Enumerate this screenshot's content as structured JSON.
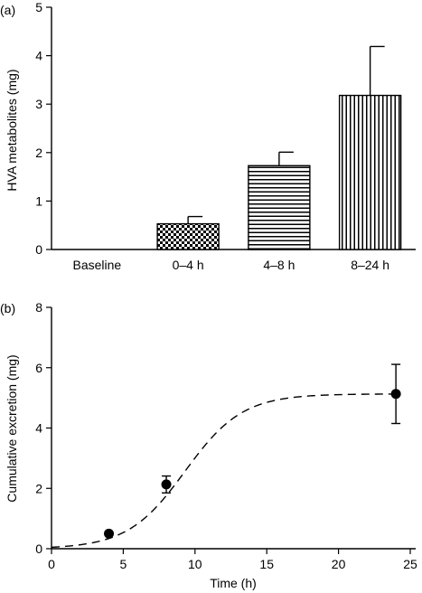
{
  "chart_data": [
    {
      "panel_label": "(a)",
      "type": "bar",
      "categories": [
        "Baseline",
        "0–4 h",
        "4–8 h",
        "8–24 h"
      ],
      "values": [
        0,
        0.53,
        1.73,
        3.18
      ],
      "error_upper": [
        0,
        0.15,
        0.28,
        1.01
      ],
      "patterns": [
        "none",
        "checker",
        "horizontal",
        "vertical"
      ],
      "ylabel": "HVA metabolites (mg)",
      "xlabel": "",
      "ylim": [
        0,
        5
      ],
      "yticks": [
        "0",
        "1",
        "2",
        "3",
        "4",
        "5"
      ],
      "grid": false
    },
    {
      "panel_label": "(b)",
      "type": "scatter",
      "points": [
        {
          "x": 4,
          "y": 0.5,
          "err": 0.06
        },
        {
          "x": 8,
          "y": 2.13,
          "err": 0.28
        },
        {
          "x": 24,
          "y": 5.13,
          "err": 0.98
        }
      ],
      "fit_curve": "dashed sigmoid",
      "fit_max": 5.13,
      "fit_midpoint": 9.3,
      "fit_slope": 2.0,
      "xlabel": "Time (h)",
      "ylabel": "Cumulative excretion (mg)",
      "xlim": [
        0,
        25
      ],
      "ylim": [
        0,
        8
      ],
      "xticks": [
        "0",
        "5",
        "10",
        "15",
        "20",
        "25"
      ],
      "yticks": [
        "0",
        "2",
        "4",
        "6",
        "8"
      ],
      "grid": false
    }
  ],
  "colors": {
    "ink": "#000000",
    "background": "#ffffff"
  }
}
